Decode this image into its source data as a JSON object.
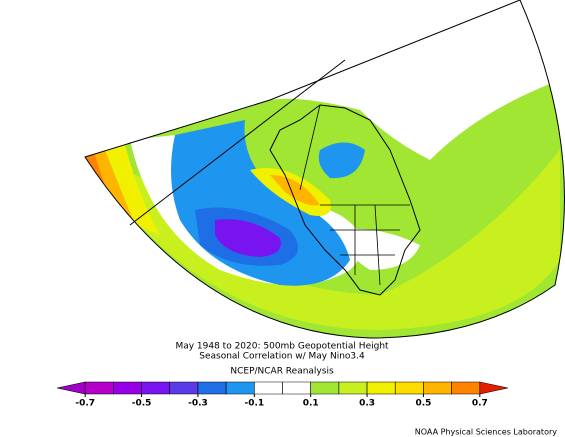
{
  "title": [
    "May 1948 to 2020: 500mb Geopotential Height",
    "Seasonal Correlation w/ May Nino3.4"
  ],
  "source": "NCEP/NCAR Reanalysis",
  "colorbar": {
    "colors": [
      "#a000c8",
      "#b400c8",
      "#9600e6",
      "#7814f0",
      "#5a3ce6",
      "#1e6ee6",
      "#1e96f0",
      "#ffffff",
      "#ffffff",
      "#a0e632",
      "#c8f01e",
      "#f0f000",
      "#ffdc00",
      "#ffb400",
      "#ff8200",
      "#e61e00"
    ],
    "ticks": [
      -0.7,
      -0.5,
      -0.3,
      -0.1,
      0.1,
      0.3,
      0.5,
      0.7
    ]
  },
  "credit": "NOAA Physical Sciences Laboratory"
}
